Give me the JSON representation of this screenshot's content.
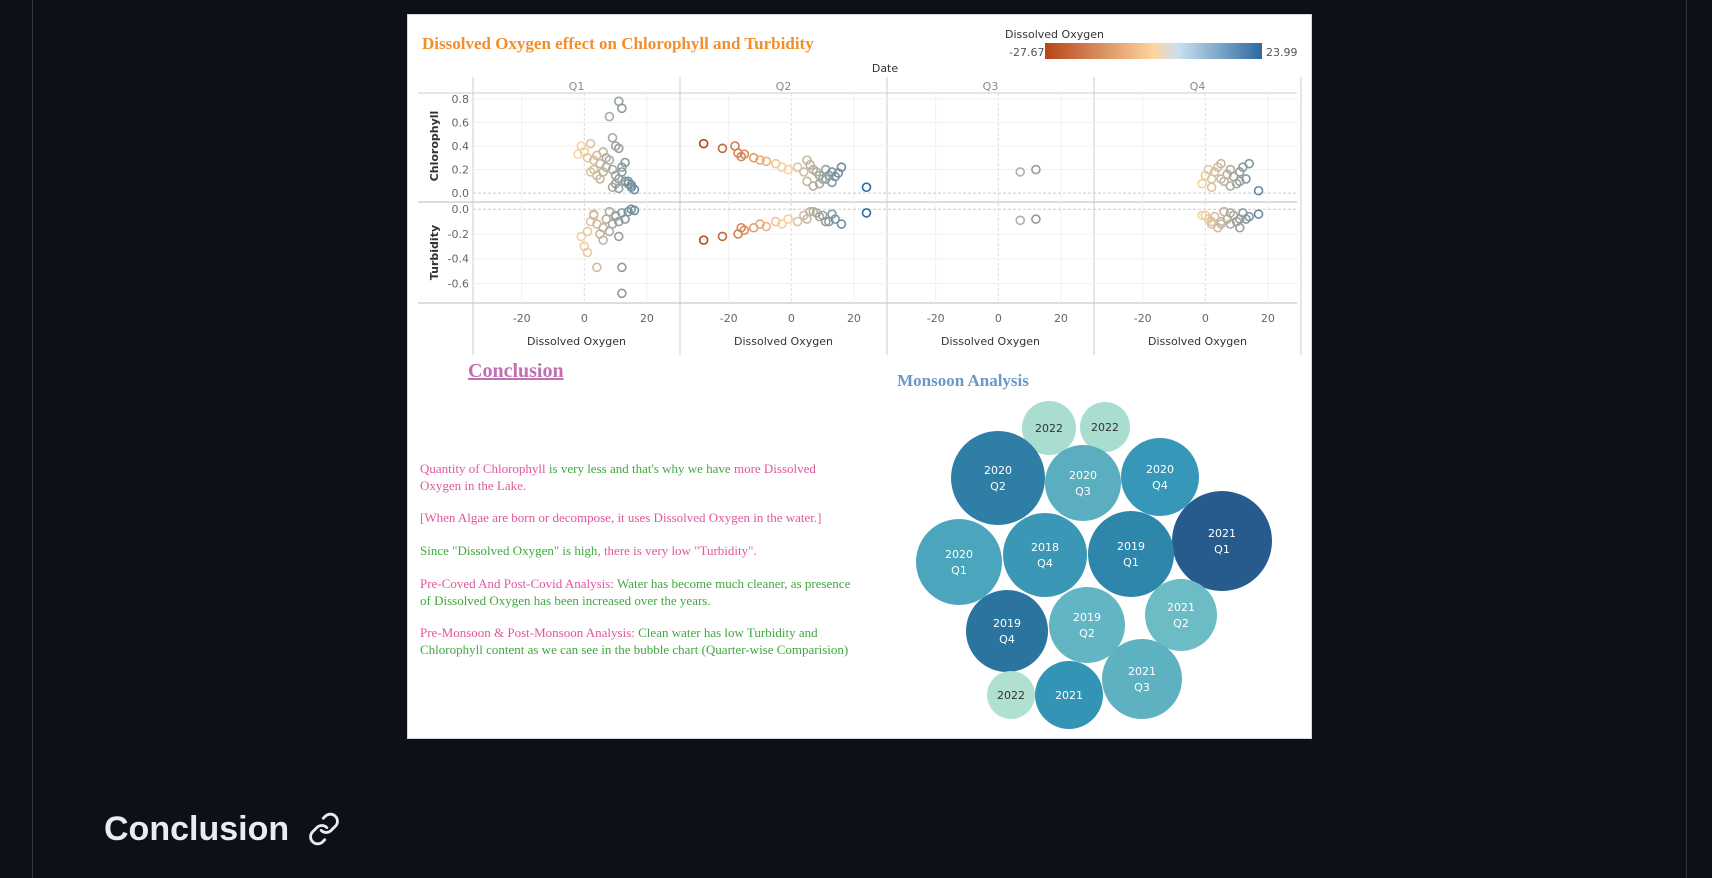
{
  "figure": {
    "title": "Dissolved Oxygen effect on Chlorophyll and Turbidity",
    "title_color": "#f28e2b",
    "legend": {
      "title": "Dissolved Oxygen",
      "min_label": "-27.67",
      "max_label": "23.99",
      "color_low": "#b5451b",
      "color_mid": "#fdd49e",
      "color_high": "#2c6aa0"
    },
    "date_header": "Date",
    "x_axis_label": "Dissolved Oxygen",
    "row_labels": [
      "Chlorophyll",
      "Turbidity"
    ],
    "conclusion_heading": "Conclusion",
    "conclusion_color": "#c070b0",
    "monsoon_title": "Monsoon Analysis",
    "monsoon_color": "#6b98c6",
    "conclusion_paragraphs": [
      [
        {
          "text": "Quantity of Chlorophyll",
          "color": "#e0579b"
        },
        {
          "text": " is very less and that's why we have ",
          "color": "#3fa83f"
        },
        {
          "text": "more Dissolved",
          "color": "#e0579b"
        }
      ],
      [
        {
          "text": "Oxygen in the Lake.",
          "color": "#e0579b"
        }
      ],
      [
        {
          "text": "[When Algae are born or decompose, it uses Dissolved Oxygen in the water.]",
          "color": "#e0579b"
        }
      ],
      [
        {
          "text": "Since \"Dissolved Oxygen\" is high",
          "color": "#3fa83f"
        },
        {
          "text": ", there is very low \"Turbidity\".",
          "color": "#e0579b"
        }
      ],
      [
        {
          "text": "Pre-Coved And Post-Covid Analysis:  ",
          "color": "#e0579b"
        },
        {
          "text": "Water has become much cleaner, as presence",
          "color": "#3fa83f"
        }
      ],
      [
        {
          "text": "of Dissolved Oxygen has been increased over the years.",
          "color": "#3fa83f"
        }
      ],
      [
        {
          "text": "Pre-Monsoon & Post-Monsoon Analysis: ",
          "color": "#e0579b"
        },
        {
          "text": "Clean water has low Turbidity and",
          "color": "#3fa83f"
        }
      ],
      [
        {
          "text": "Chlorophyll content as we can see in the bubble chart (Quarter-wise Comparision)",
          "color": "#3fa83f"
        }
      ]
    ]
  },
  "page": {
    "section_heading": "Conclusion",
    "anchor_icon": "link-icon"
  },
  "chart_data": [
    {
      "type": "scatter",
      "title": "Dissolved Oxygen effect on Chlorophyll and Turbidity",
      "column_header": "Date",
      "facets": [
        "Q1",
        "Q2",
        "Q3",
        "Q4"
      ],
      "xlabel": "Dissolved Oxygen",
      "xlim": [
        -33,
        28
      ],
      "x_ticks": [
        -20,
        0,
        20
      ],
      "color_scale": {
        "variable": "Dissolved Oxygen",
        "min": -27.67,
        "max": 23.99
      },
      "rows": [
        {
          "name": "Chlorophyll",
          "ylim": [
            -0.05,
            0.85
          ],
          "y_ticks": [
            0.0,
            0.2,
            0.4,
            0.6,
            0.8
          ]
        },
        {
          "name": "Turbidity",
          "ylim": [
            -0.75,
            0.05
          ],
          "y_ticks": [
            0.0,
            -0.2,
            -0.4,
            -0.6
          ]
        }
      ],
      "grid": true,
      "legend": "top-right",
      "series": [
        {
          "facet": "Q1",
          "row": "Chlorophyll",
          "x": [
            0,
            -1,
            1,
            2,
            -2,
            3,
            4,
            5,
            6,
            7,
            8,
            9,
            10,
            11,
            12,
            13,
            14,
            15,
            16,
            11,
            12,
            8,
            9,
            10,
            11,
            13,
            5,
            6,
            7,
            4,
            3,
            2,
            9,
            10,
            11,
            12,
            14,
            15
          ],
          "y": [
            0.35,
            0.4,
            0.3,
            0.42,
            0.33,
            0.2,
            0.15,
            0.25,
            0.35,
            0.3,
            0.28,
            0.2,
            0.15,
            0.12,
            0.22,
            0.1,
            0.08,
            0.05,
            0.03,
            0.78,
            0.72,
            0.65,
            0.47,
            0.4,
            0.38,
            0.26,
            0.12,
            0.18,
            0.22,
            0.32,
            0.28,
            0.18,
            0.05,
            0.08,
            0.04,
            0.18,
            0.1,
            0.07
          ]
        },
        {
          "facet": "Q2",
          "row": "Chlorophyll",
          "x": [
            -28,
            -22,
            -18,
            -17,
            -16,
            -15,
            -12,
            -10,
            -8,
            -5,
            -3,
            -1,
            2,
            4,
            5,
            6,
            7,
            8,
            9,
            10,
            11,
            12,
            13,
            14,
            15,
            16,
            24,
            5,
            7,
            9,
            11,
            13
          ],
          "y": [
            0.42,
            0.38,
            0.4,
            0.34,
            0.31,
            0.33,
            0.3,
            0.28,
            0.27,
            0.25,
            0.22,
            0.2,
            0.22,
            0.18,
            0.28,
            0.24,
            0.2,
            0.18,
            0.15,
            0.12,
            0.2,
            0.15,
            0.18,
            0.14,
            0.17,
            0.22,
            0.05,
            0.1,
            0.06,
            0.08,
            0.12,
            0.09
          ]
        },
        {
          "facet": "Q3",
          "row": "Chlorophyll",
          "x": [
            7,
            12
          ],
          "y": [
            0.18,
            0.2
          ]
        },
        {
          "facet": "Q4",
          "row": "Chlorophyll",
          "x": [
            0,
            1,
            2,
            3,
            4,
            5,
            6,
            7,
            8,
            9,
            10,
            11,
            12,
            13,
            14,
            17,
            -1,
            2,
            5,
            8,
            11
          ],
          "y": [
            0.15,
            0.2,
            0.12,
            0.18,
            0.22,
            0.25,
            0.1,
            0.16,
            0.2,
            0.14,
            0.08,
            0.18,
            0.22,
            0.12,
            0.25,
            0.02,
            0.08,
            0.05,
            0.12,
            0.06,
            0.1
          ]
        },
        {
          "facet": "Q1",
          "row": "Turbidity",
          "x": [
            -1,
            0,
            1,
            2,
            3,
            4,
            5,
            6,
            7,
            8,
            9,
            10,
            11,
            12,
            13,
            14,
            15,
            16,
            12,
            12,
            4,
            11,
            6,
            8,
            10,
            1,
            3
          ],
          "y": [
            -0.22,
            -0.3,
            -0.18,
            -0.1,
            -0.05,
            -0.12,
            -0.2,
            -0.15,
            -0.08,
            -0.02,
            -0.12,
            -0.05,
            -0.1,
            -0.03,
            -0.08,
            -0.02,
            0.0,
            -0.01,
            -0.68,
            -0.47,
            -0.47,
            -0.22,
            -0.25,
            -0.18,
            -0.06,
            -0.35,
            -0.04
          ]
        },
        {
          "facet": "Q2",
          "row": "Turbidity",
          "x": [
            -28,
            -22,
            -17,
            -16,
            -15,
            -12,
            -10,
            -8,
            -5,
            -3,
            -1,
            2,
            4,
            6,
            8,
            10,
            12,
            14,
            16,
            24,
            5,
            7,
            9,
            11,
            13
          ],
          "y": [
            -0.25,
            -0.22,
            -0.2,
            -0.15,
            -0.17,
            -0.15,
            -0.12,
            -0.14,
            -0.1,
            -0.12,
            -0.08,
            -0.1,
            -0.05,
            -0.02,
            -0.03,
            -0.05,
            -0.1,
            -0.08,
            -0.12,
            -0.03,
            -0.08,
            -0.02,
            -0.06,
            -0.1,
            -0.04
          ]
        },
        {
          "facet": "Q3",
          "row": "Turbidity",
          "x": [
            7,
            12
          ],
          "y": [
            -0.09,
            -0.08
          ]
        },
        {
          "facet": "Q4",
          "row": "Turbidity",
          "x": [
            0,
            1,
            2,
            3,
            4,
            5,
            6,
            7,
            8,
            9,
            10,
            11,
            12,
            13,
            14,
            17,
            -1,
            2,
            5,
            8,
            11
          ],
          "y": [
            -0.05,
            -0.08,
            -0.12,
            -0.06,
            -0.15,
            -0.1,
            -0.02,
            -0.08,
            -0.12,
            -0.05,
            -0.1,
            -0.15,
            -0.03,
            -0.08,
            -0.06,
            -0.04,
            -0.05,
            -0.1,
            -0.12,
            -0.03,
            -0.08
          ]
        }
      ]
    },
    {
      "type": "bubble",
      "title": "Monsoon Analysis",
      "bubbles": [
        {
          "label": [
            "2022"
          ],
          "color": "#a8ddd0"
        },
        {
          "label": [
            "2022"
          ],
          "color": "#a8ddd0"
        },
        {
          "label": [
            "2020",
            "Q2"
          ],
          "color": "#2f7ea5"
        },
        {
          "label": [
            "2020",
            "Q3"
          ],
          "color": "#5aaec0"
        },
        {
          "label": [
            "2020",
            "Q4"
          ],
          "color": "#3797b8"
        },
        {
          "label": [
            "2021",
            "Q1"
          ],
          "color": "#275b8e"
        },
        {
          "label": [
            "2020",
            "Q1"
          ],
          "color": "#4aa5bd"
        },
        {
          "label": [
            "2018",
            "Q4"
          ],
          "color": "#3a98b6"
        },
        {
          "label": [
            "2019",
            "Q1"
          ],
          "color": "#2f86ab"
        },
        {
          "label": [
            "2021",
            "Q2"
          ],
          "color": "#6bbcc4"
        },
        {
          "label": [
            "2019",
            "Q4"
          ],
          "color": "#2c74a0"
        },
        {
          "label": [
            "2019",
            "Q2"
          ],
          "color": "#62b5c3"
        },
        {
          "label": [
            "2021",
            "Q3"
          ],
          "color": "#5eb1c1"
        },
        {
          "label": [
            "2022"
          ],
          "color": "#b0e0d2"
        },
        {
          "label": [
            "2021"
          ],
          "color": "#3394b5"
        }
      ]
    }
  ]
}
